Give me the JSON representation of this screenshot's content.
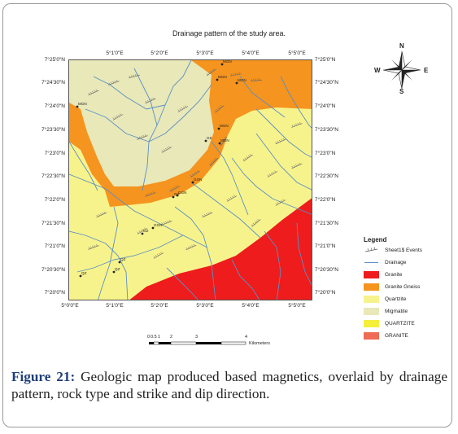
{
  "map": {
    "title": "Drainage pattern of the study area.",
    "lon_labels_top": [
      "5°1'0\"E",
      "5°2'0\"E",
      "5°3'0\"E",
      "5°4'0\"E",
      "5°5'0\"E"
    ],
    "lon_labels_bottom": [
      "5°0'0\"E",
      "5°1'0\"E",
      "5°2'0\"E",
      "5°3'0\"E",
      "5°4'0\"E",
      "5°5'0\"E"
    ],
    "lat_labels": [
      "7°25'0\"N",
      "7°24'30\"N",
      "7°24'0\"N",
      "7°23'30\"N",
      "7°23'0\"N",
      "7°22'30\"N",
      "7°22'0\"N",
      "7°21'30\"N",
      "7°21'0\"N",
      "7°20'30\"N",
      "7°20'0\"N"
    ],
    "units": {
      "granite": "#ee1c1c",
      "granite_gneiss": "#f5941f",
      "quartzite": "#f7f38c",
      "migmatite": "#e8e8b8",
      "drainage": "#5b8fc4"
    },
    "sites": [
      "MGN",
      "MGN",
      "MGN",
      "MGN",
      "MGN",
      "MGN",
      "GK",
      "GGN",
      "GGN",
      "GZ",
      "GGN",
      "GZ",
      "QZ",
      "QZ",
      "QZ"
    ]
  },
  "compass": {
    "n": "N",
    "s": "S",
    "e": "E",
    "w": "W"
  },
  "legend": {
    "title": "Legend",
    "items": [
      {
        "label": "Sheet1$ Events",
        "kind": "symbol"
      },
      {
        "label": "Drainage",
        "kind": "line",
        "color": "#5b8fc4"
      },
      {
        "label": "Granite",
        "kind": "fill",
        "color": "#ee1c1c"
      },
      {
        "label": "Granite Gneiss",
        "kind": "fill",
        "color": "#f5941f"
      },
      {
        "label": "Quartzite",
        "kind": "fill",
        "color": "#f7f38c"
      },
      {
        "label": "Migmatite",
        "kind": "fill",
        "color": "#e8e8b8"
      },
      {
        "label": "QUARTZITE",
        "kind": "fill",
        "color": "#f4ef3a"
      },
      {
        "label": "GRANITE",
        "kind": "fill",
        "color": "#ef6b55"
      }
    ]
  },
  "scale": {
    "ticks": [
      "0",
      "0.5",
      "1",
      "2",
      "3",
      "4"
    ],
    "unit": "Kilometers"
  },
  "caption": {
    "label": "Figure 21:",
    "text": " Geologic map produced based magnetics, overlaid by drainage pattern, rock type and strike and dip direction."
  }
}
